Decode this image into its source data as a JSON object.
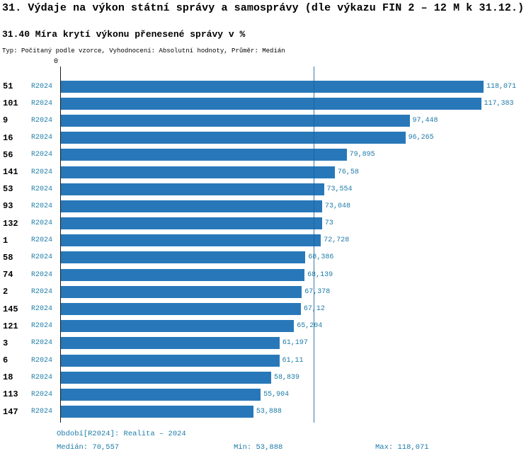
{
  "page": {
    "title_line1": "31. Výdaje na výkon státní správy a samosprávy (dle výkazu FIN 2 – 12 M k 31.12.)",
    "title_line2": "31.40 Míra krytí výkonu přenesené správy v %",
    "subtitle": "Typ: Počítaný podle vzorce, Vyhodnocení: Absolutní hodnoty, Průměr: Medián"
  },
  "chart_data": {
    "type": "bar",
    "orientation": "horizontal",
    "title": "31.40 Míra krytí výkonu přenesené správy v %",
    "xlabel": "",
    "ylabel": "",
    "series_name": "R2024",
    "axis_origin_label": "0",
    "categories": [
      "51",
      "101",
      "9",
      "16",
      "56",
      "141",
      "53",
      "93",
      "132",
      "1",
      "58",
      "74",
      "2",
      "145",
      "121",
      "3",
      "6",
      "18",
      "113",
      "147"
    ],
    "values": [
      118.071,
      117.383,
      97.448,
      96.265,
      79.895,
      76.58,
      73.554,
      73.048,
      73,
      72.728,
      68.386,
      68.139,
      67.378,
      67.12,
      65.204,
      61.197,
      61.11,
      58.839,
      55.904,
      53.888
    ],
    "value_labels": [
      "118,071",
      "117,383",
      "97,448",
      "96,265",
      "79,895",
      "76,58",
      "73,554",
      "73,048",
      "73",
      "72,728",
      "68,386",
      "68,139",
      "67,378",
      "67,12",
      "65,204",
      "61,197",
      "61,11",
      "58,839",
      "55,904",
      "53,888"
    ],
    "median": 70.557,
    "xlim": [
      0,
      118.071
    ],
    "grid": false,
    "legend_position": "none",
    "colors": {
      "bar": "#2878b9",
      "accent_text": "#1d7ba8",
      "median_line": "#17629c",
      "axis": "#1a1a1a"
    }
  },
  "footer": {
    "period": "Období[R2024]: Realita – 2024",
    "median": "Medián: 70,557",
    "min": "Min: 53,888",
    "max": "Max: 118,071"
  }
}
